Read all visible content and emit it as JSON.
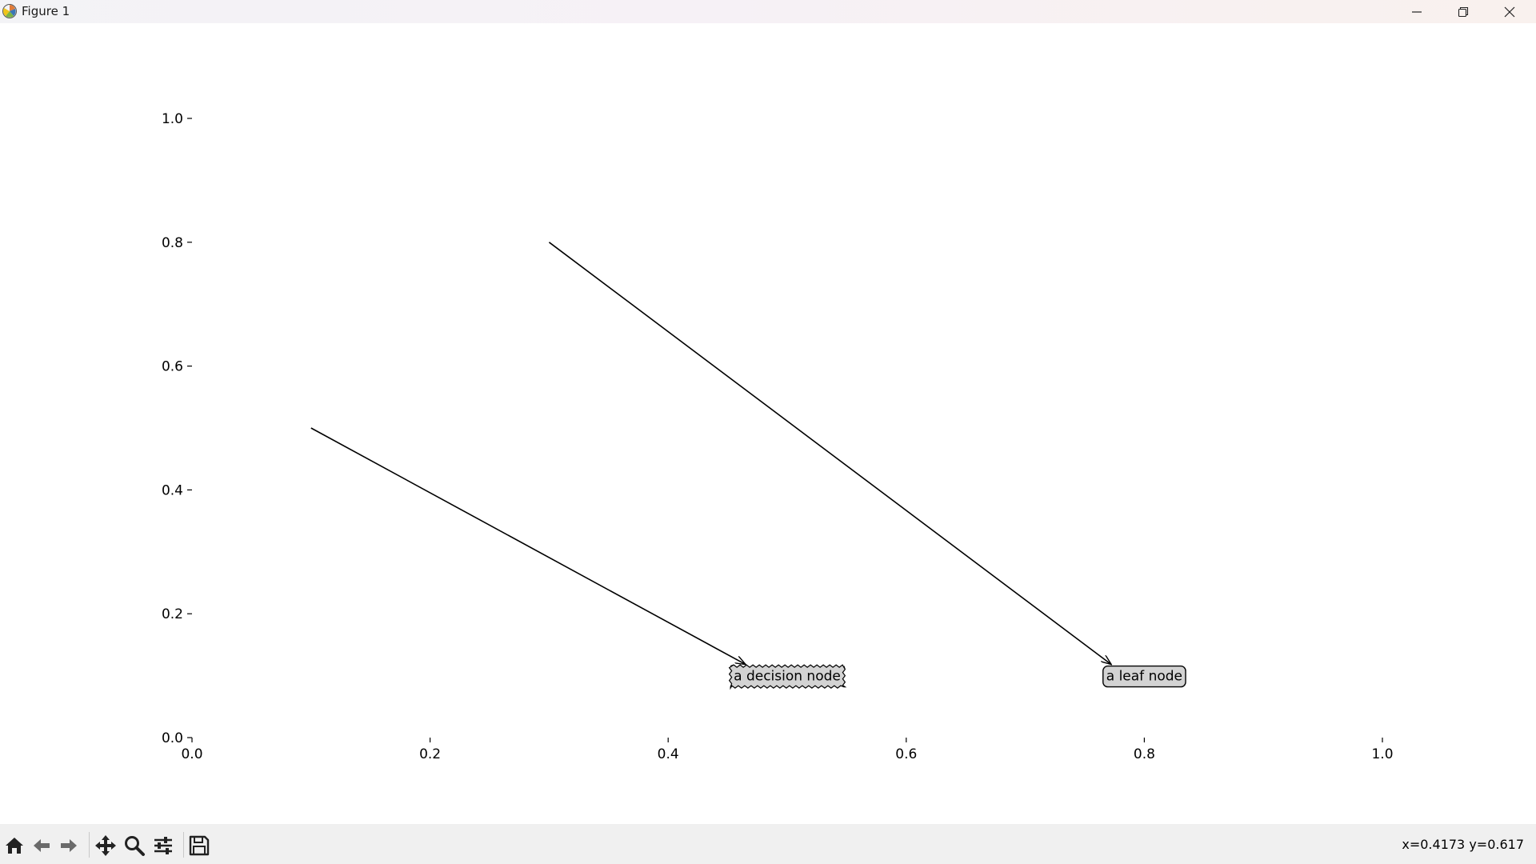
{
  "window": {
    "title": "Figure 1",
    "controls": [
      "minimize-icon",
      "maximize-icon",
      "close-icon"
    ]
  },
  "chart_data": {
    "type": "annotation",
    "xlim": [
      0.0,
      1.0
    ],
    "ylim": [
      0.0,
      1.0
    ],
    "x_ticks": [
      "0.0",
      "0.2",
      "0.4",
      "0.6",
      "0.8",
      "1.0"
    ],
    "y_ticks": [
      "0.0",
      "0.2",
      "0.4",
      "0.6",
      "0.8",
      "1.0"
    ],
    "annotations": [
      {
        "text": "a decision node",
        "box_style": "sawtooth",
        "text_xy": [
          0.5,
          0.1
        ],
        "arrow_from_xy": [
          0.1,
          0.5
        ]
      },
      {
        "text": "a leaf node",
        "box_style": "round",
        "text_xy": [
          0.8,
          0.1
        ],
        "arrow_from_xy": [
          0.3,
          0.8
        ]
      }
    ],
    "box_fill": "#d3d3d3",
    "spines_visible": false
  },
  "toolbar": {
    "buttons": [
      {
        "name": "home-button",
        "icon": "home-icon"
      },
      {
        "name": "back-button",
        "icon": "arrow-left-icon"
      },
      {
        "name": "forward-button",
        "icon": "arrow-right-icon"
      },
      {
        "name": "pan-button",
        "icon": "move-icon"
      },
      {
        "name": "zoom-button",
        "icon": "magnifier-icon"
      },
      {
        "name": "configure-subplots-button",
        "icon": "sliders-icon"
      },
      {
        "name": "save-button",
        "icon": "floppy-disk-icon"
      }
    ],
    "coords": "x=0.4173 y=0.617"
  }
}
